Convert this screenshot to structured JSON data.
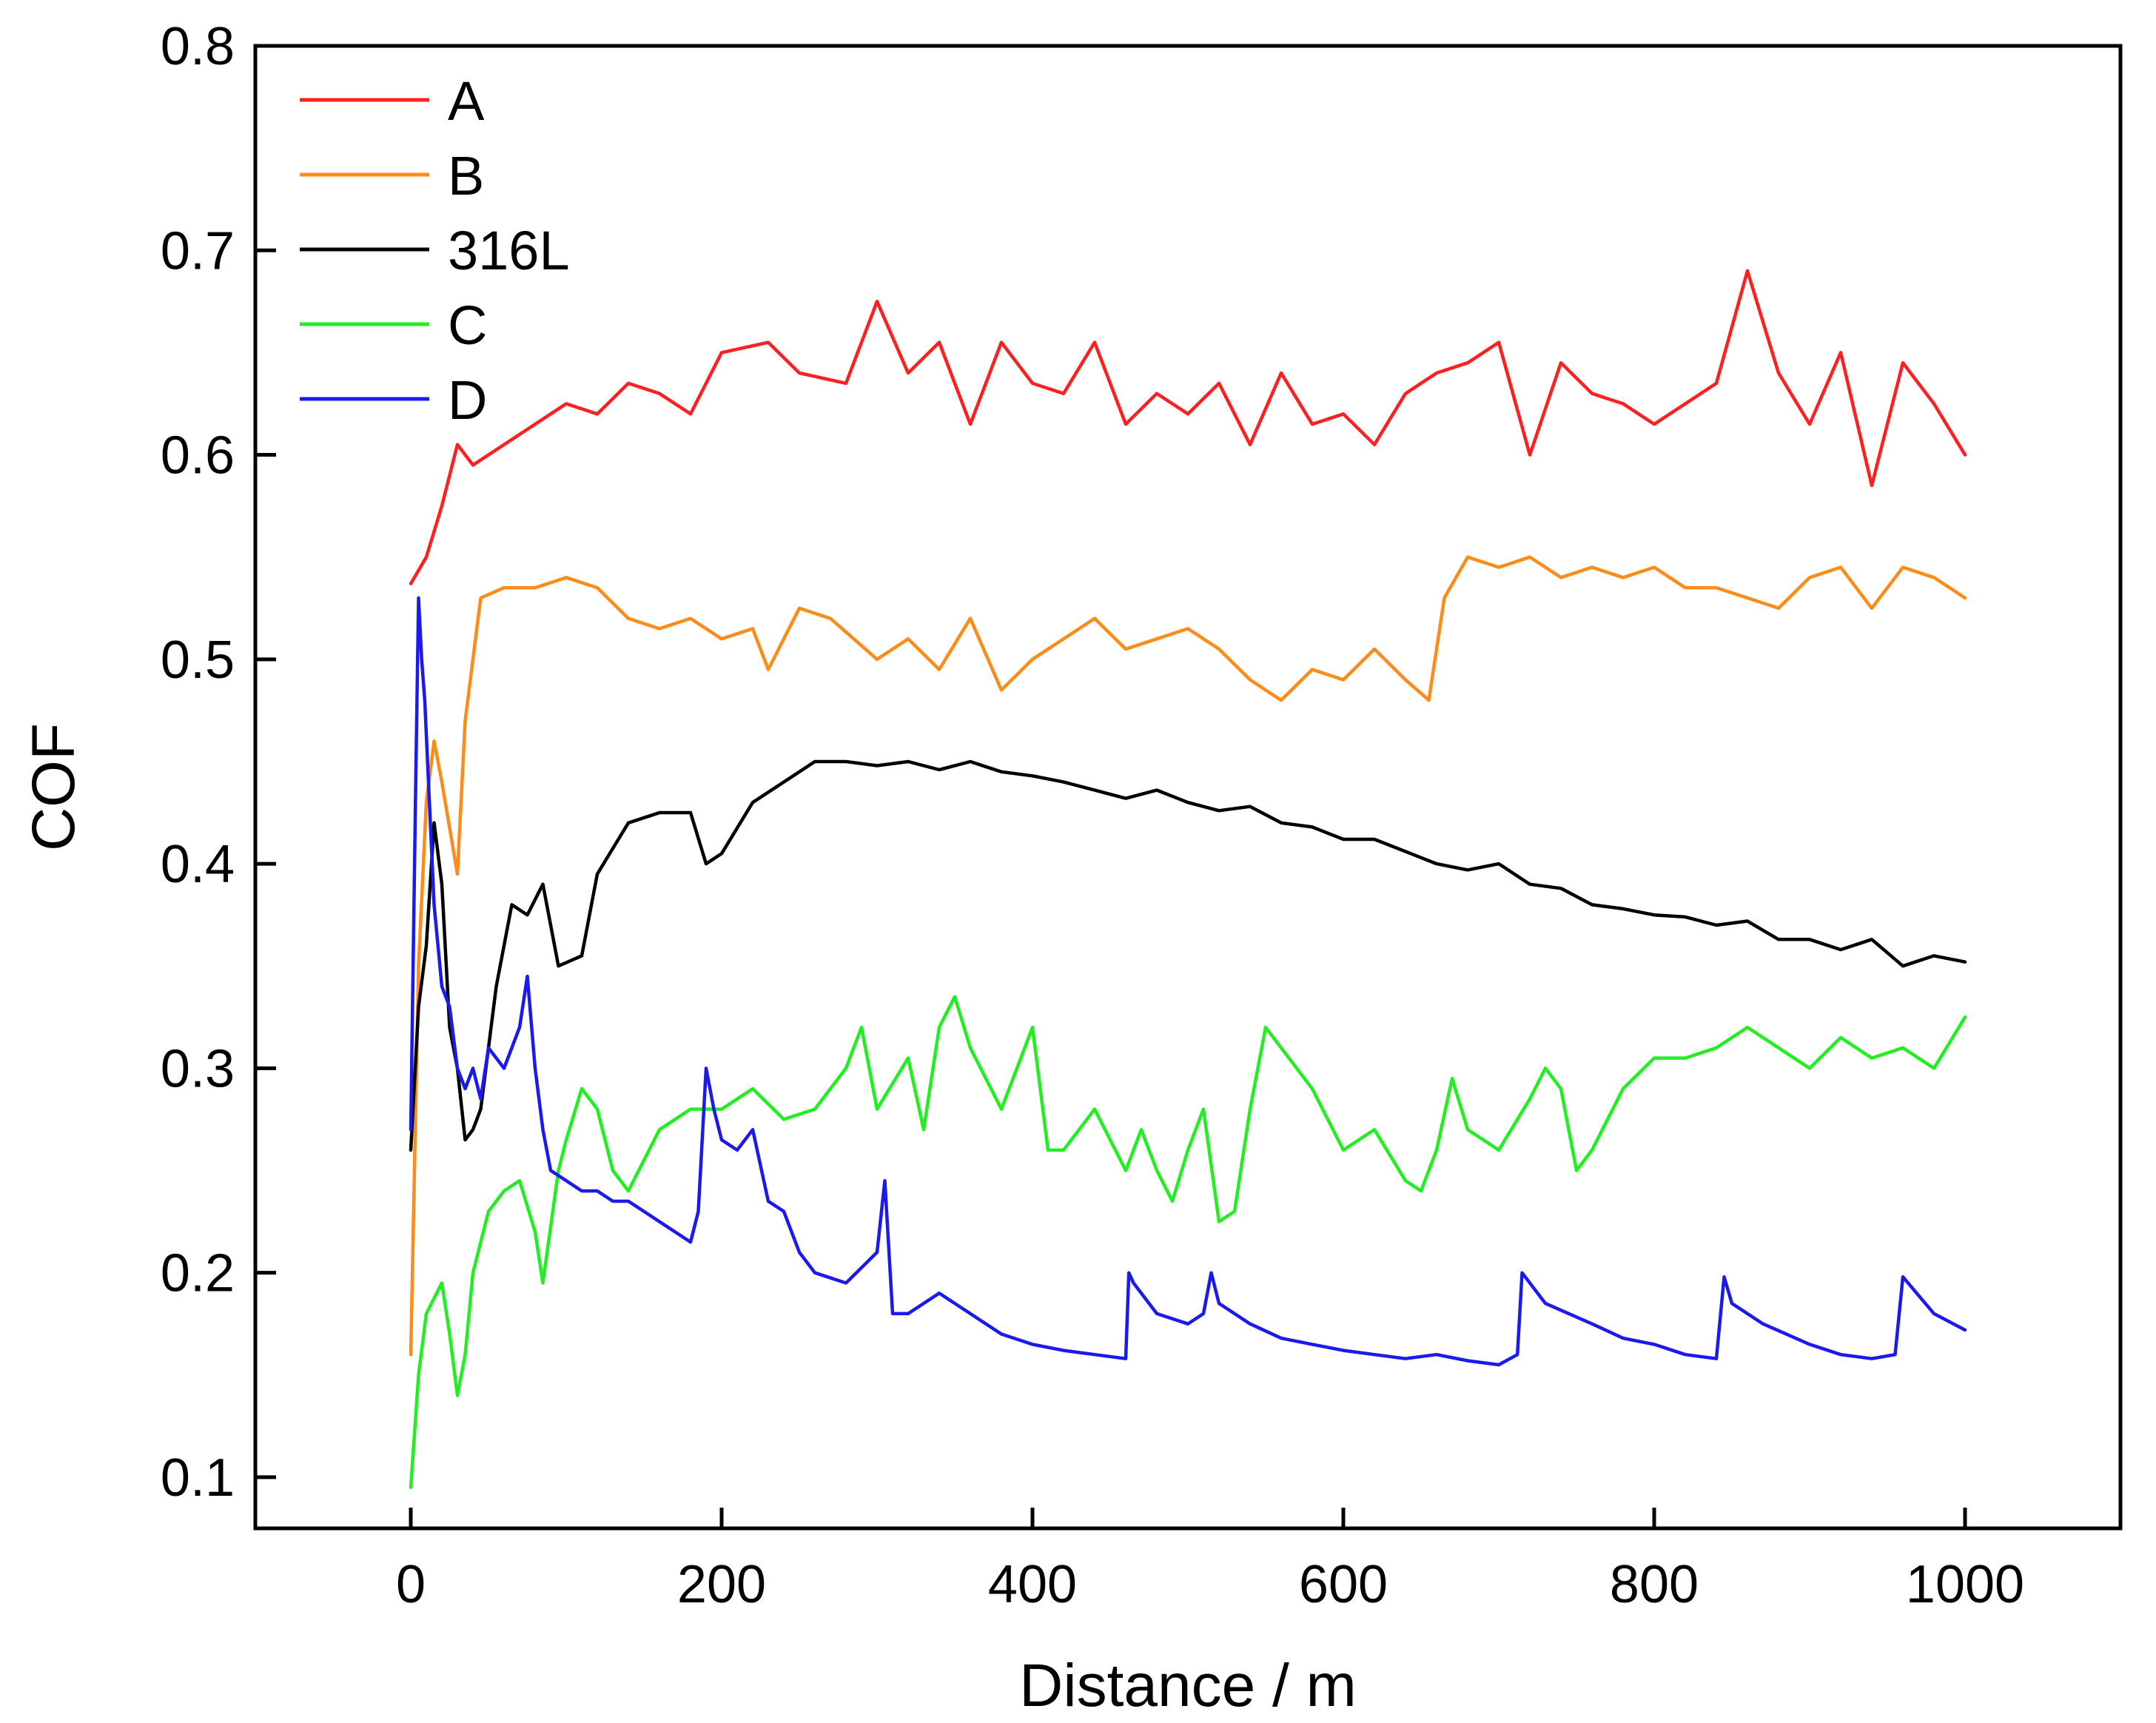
{
  "chart_data": {
    "type": "line",
    "title": "",
    "xlabel": "Distance / m",
    "ylabel": "COF",
    "xlim": [
      -100,
      1100
    ],
    "ylim": [
      0.075,
      0.8
    ],
    "xticks": [
      0,
      200,
      400,
      600,
      800,
      1000
    ],
    "yticks": [
      0.1,
      0.2,
      0.3,
      0.4,
      0.5,
      0.6,
      0.7,
      0.8
    ],
    "xtick_labels": [
      "0",
      "200",
      "400",
      "600",
      "800",
      "1000"
    ],
    "ytick_labels": [
      "0.1",
      "0.2",
      "0.3",
      "0.4",
      "0.5",
      "0.6",
      "0.7",
      "0.8"
    ],
    "grid": false,
    "legend_position": "top-left",
    "series": [
      {
        "name": "A",
        "color": "#ff2020",
        "x": [
          0,
          10,
          20,
          30,
          40,
          60,
          80,
          100,
          120,
          140,
          160,
          180,
          200,
          230,
          250,
          280,
          300,
          320,
          340,
          360,
          380,
          400,
          420,
          440,
          460,
          480,
          500,
          520,
          540,
          560,
          580,
          600,
          620,
          640,
          660,
          680,
          700,
          720,
          740,
          760,
          780,
          800,
          820,
          840,
          860,
          880,
          900,
          920,
          940,
          960,
          980,
          1000
        ],
        "y": [
          0.537,
          0.55,
          0.575,
          0.605,
          0.595,
          0.605,
          0.615,
          0.625,
          0.62,
          0.635,
          0.63,
          0.62,
          0.65,
          0.655,
          0.64,
          0.635,
          0.675,
          0.64,
          0.655,
          0.615,
          0.655,
          0.635,
          0.63,
          0.655,
          0.615,
          0.63,
          0.62,
          0.635,
          0.605,
          0.64,
          0.615,
          0.62,
          0.605,
          0.63,
          0.64,
          0.645,
          0.655,
          0.6,
          0.645,
          0.63,
          0.625,
          0.615,
          0.625,
          0.635,
          0.69,
          0.64,
          0.615,
          0.65,
          0.585,
          0.645,
          0.625,
          0.6
        ]
      },
      {
        "name": "B",
        "color": "#ff8c1a",
        "x": [
          0,
          5,
          10,
          15,
          20,
          30,
          35,
          45,
          60,
          80,
          100,
          120,
          140,
          160,
          180,
          200,
          220,
          230,
          250,
          270,
          300,
          320,
          340,
          360,
          380,
          400,
          420,
          440,
          460,
          480,
          500,
          520,
          540,
          560,
          580,
          600,
          620,
          640,
          655,
          665,
          680,
          700,
          720,
          740,
          760,
          780,
          800,
          820,
          840,
          860,
          880,
          900,
          920,
          940,
          960,
          980,
          1000
        ],
        "y": [
          0.16,
          0.35,
          0.43,
          0.46,
          0.44,
          0.395,
          0.47,
          0.53,
          0.535,
          0.535,
          0.54,
          0.535,
          0.52,
          0.515,
          0.52,
          0.51,
          0.515,
          0.495,
          0.525,
          0.52,
          0.5,
          0.51,
          0.495,
          0.52,
          0.485,
          0.5,
          0.51,
          0.52,
          0.505,
          0.51,
          0.515,
          0.505,
          0.49,
          0.48,
          0.495,
          0.49,
          0.505,
          0.49,
          0.48,
          0.53,
          0.55,
          0.545,
          0.55,
          0.54,
          0.545,
          0.54,
          0.545,
          0.535,
          0.535,
          0.53,
          0.525,
          0.54,
          0.545,
          0.525,
          0.545,
          0.54,
          0.53
        ]
      },
      {
        "name": "316L",
        "color": "#000000",
        "x": [
          0,
          5,
          10,
          15,
          20,
          25,
          30,
          35,
          40,
          45,
          55,
          65,
          75,
          85,
          95,
          110,
          120,
          140,
          160,
          180,
          190,
          200,
          220,
          240,
          260,
          280,
          300,
          320,
          340,
          360,
          380,
          400,
          420,
          440,
          460,
          480,
          500,
          520,
          540,
          560,
          580,
          600,
          620,
          640,
          660,
          680,
          700,
          720,
          740,
          760,
          780,
          800,
          820,
          840,
          860,
          880,
          900,
          920,
          940,
          960,
          980,
          1000
        ],
        "y": [
          0.26,
          0.33,
          0.36,
          0.42,
          0.39,
          0.32,
          0.3,
          0.265,
          0.27,
          0.28,
          0.34,
          0.38,
          0.375,
          0.39,
          0.35,
          0.355,
          0.395,
          0.42,
          0.425,
          0.425,
          0.4,
          0.405,
          0.43,
          0.44,
          0.45,
          0.45,
          0.448,
          0.45,
          0.446,
          0.45,
          0.445,
          0.443,
          0.44,
          0.436,
          0.432,
          0.436,
          0.43,
          0.426,
          0.428,
          0.42,
          0.418,
          0.412,
          0.412,
          0.406,
          0.4,
          0.397,
          0.4,
          0.39,
          0.388,
          0.38,
          0.378,
          0.375,
          0.374,
          0.37,
          0.372,
          0.363,
          0.363,
          0.358,
          0.363,
          0.35,
          0.355,
          0.352
        ]
      },
      {
        "name": "C",
        "color": "#22ee22",
        "x": [
          0,
          5,
          10,
          20,
          25,
          30,
          35,
          40,
          50,
          60,
          70,
          80,
          85,
          95,
          100,
          110,
          120,
          130,
          140,
          160,
          180,
          200,
          220,
          240,
          260,
          280,
          290,
          300,
          320,
          330,
          340,
          350,
          360,
          380,
          390,
          400,
          410,
          420,
          440,
          460,
          470,
          480,
          490,
          500,
          510,
          520,
          530,
          540,
          550,
          560,
          580,
          600,
          620,
          640,
          650,
          660,
          670,
          680,
          700,
          720,
          730,
          740,
          750,
          760,
          780,
          800,
          820,
          840,
          860,
          880,
          900,
          920,
          940,
          960,
          980,
          1000
        ],
        "y": [
          0.095,
          0.15,
          0.18,
          0.195,
          0.17,
          0.14,
          0.16,
          0.2,
          0.23,
          0.24,
          0.245,
          0.22,
          0.195,
          0.25,
          0.265,
          0.29,
          0.28,
          0.25,
          0.24,
          0.27,
          0.28,
          0.28,
          0.29,
          0.275,
          0.28,
          0.3,
          0.32,
          0.28,
          0.305,
          0.27,
          0.32,
          0.335,
          0.31,
          0.28,
          0.3,
          0.32,
          0.26,
          0.26,
          0.28,
          0.25,
          0.27,
          0.25,
          0.235,
          0.26,
          0.28,
          0.225,
          0.23,
          0.28,
          0.32,
          0.31,
          0.29,
          0.26,
          0.27,
          0.245,
          0.24,
          0.26,
          0.295,
          0.27,
          0.26,
          0.285,
          0.3,
          0.29,
          0.25,
          0.26,
          0.29,
          0.305,
          0.305,
          0.31,
          0.32,
          0.31,
          0.3,
          0.315,
          0.305,
          0.31,
          0.3,
          0.325
        ]
      },
      {
        "name": "D",
        "color": "#1a1aee",
        "x": [
          0,
          3,
          5,
          7,
          9,
          12,
          15,
          20,
          25,
          30,
          35,
          40,
          45,
          50,
          60,
          70,
          75,
          80,
          85,
          90,
          100,
          110,
          120,
          130,
          140,
          150,
          160,
          170,
          180,
          185,
          190,
          195,
          200,
          210,
          220,
          230,
          240,
          250,
          260,
          280,
          300,
          305,
          310,
          320,
          340,
          360,
          380,
          400,
          420,
          440,
          460,
          462,
          465,
          480,
          500,
          510,
          515,
          520,
          540,
          560,
          580,
          600,
          620,
          640,
          660,
          680,
          700,
          712,
          715,
          730,
          760,
          780,
          800,
          820,
          840,
          845,
          850,
          870,
          900,
          920,
          940,
          955,
          960,
          980,
          1000
        ],
        "y": [
          0.27,
          0.43,
          0.53,
          0.5,
          0.48,
          0.43,
          0.38,
          0.34,
          0.33,
          0.3,
          0.29,
          0.3,
          0.285,
          0.31,
          0.3,
          0.32,
          0.345,
          0.3,
          0.27,
          0.25,
          0.245,
          0.24,
          0.24,
          0.235,
          0.235,
          0.23,
          0.225,
          0.22,
          0.215,
          0.23,
          0.3,
          0.28,
          0.265,
          0.26,
          0.27,
          0.235,
          0.23,
          0.21,
          0.2,
          0.195,
          0.21,
          0.245,
          0.18,
          0.18,
          0.19,
          0.18,
          0.17,
          0.165,
          0.162,
          0.16,
          0.158,
          0.2,
          0.195,
          0.18,
          0.175,
          0.18,
          0.2,
          0.185,
          0.175,
          0.168,
          0.165,
          0.162,
          0.16,
          0.158,
          0.16,
          0.157,
          0.155,
          0.16,
          0.2,
          0.185,
          0.175,
          0.168,
          0.165,
          0.16,
          0.158,
          0.198,
          0.185,
          0.175,
          0.165,
          0.16,
          0.158,
          0.16,
          0.198,
          0.18,
          0.172
        ]
      }
    ]
  }
}
